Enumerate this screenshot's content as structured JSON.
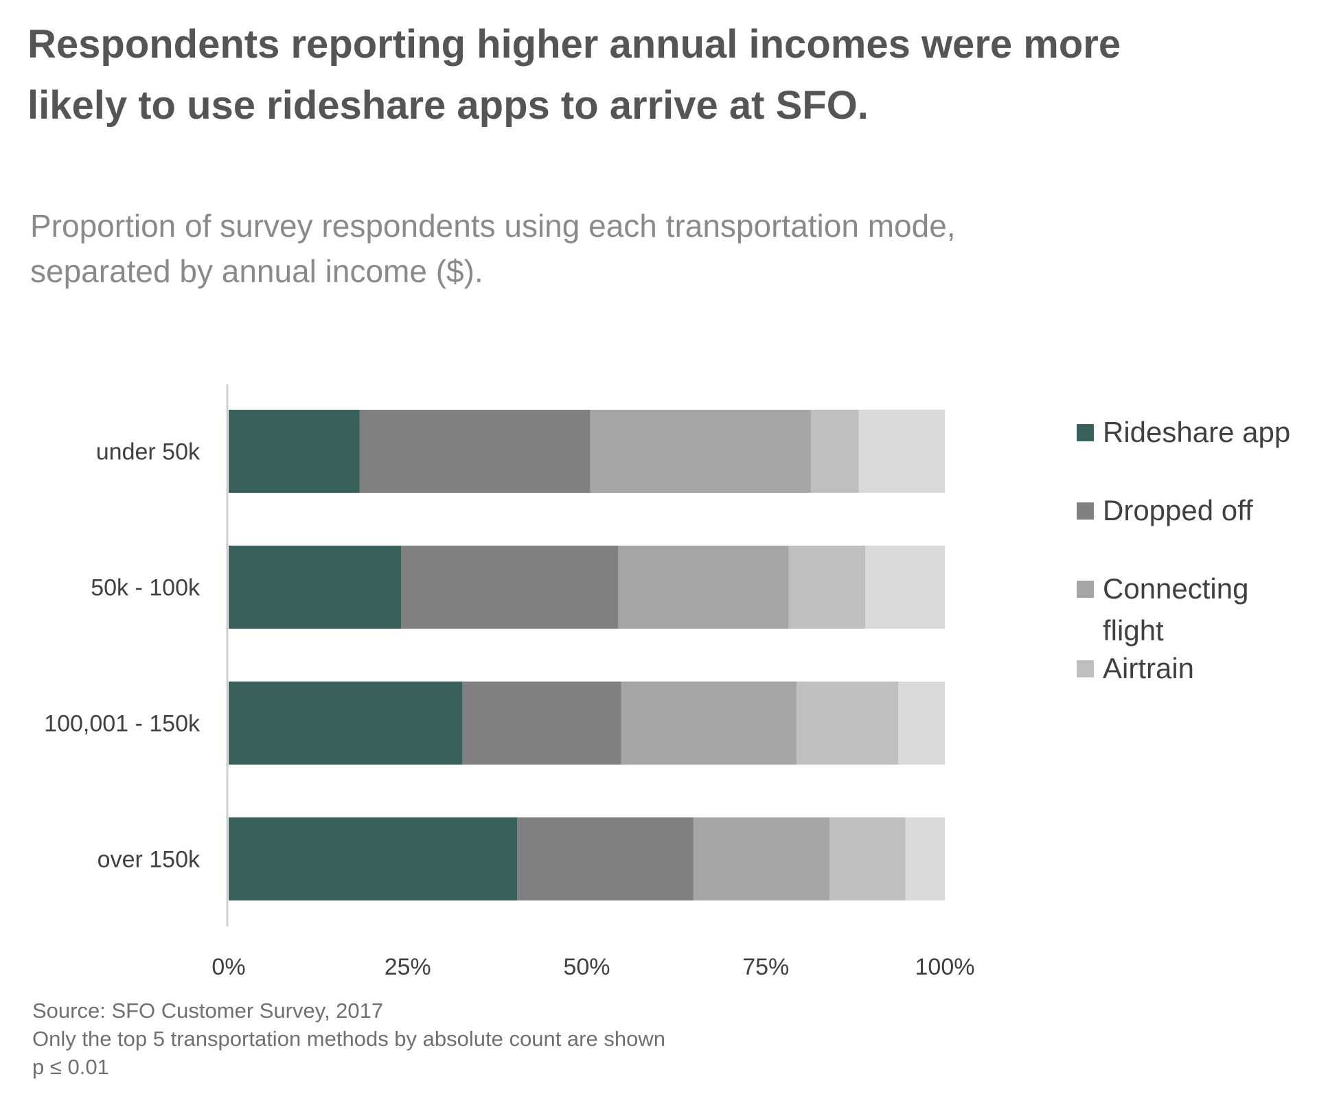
{
  "title": "Respondents reporting higher annual incomes were more likely to use rideshare apps to arrive at SFO.",
  "subtitle": "Proportion of survey respondents using each transportation mode, separated by annual income ($).",
  "notes": {
    "source": "Source: SFO Customer Survey, 2017",
    "line2": "Only the top 5 transportation methods by absolute count are shown",
    "line3": "p ≤ 0.01"
  },
  "chart_data": {
    "type": "bar",
    "orientation": "horizontal",
    "stacked": true,
    "normalized": true,
    "categories": [
      "under 50k",
      "50k - 100k",
      "100,001 - 150k",
      "over 150k"
    ],
    "series": [
      {
        "name": "Rideshare app",
        "color": "#38615c",
        "values": [
          18.3,
          24.1,
          32.6,
          40.3
        ]
      },
      {
        "name": "Dropped off",
        "color": "#808080",
        "values": [
          32.2,
          30.3,
          22.2,
          24.6
        ]
      },
      {
        "name": "Connecting flight",
        "color": "#a5a5a5",
        "values": [
          30.8,
          23.8,
          24.5,
          19.0
        ]
      },
      {
        "name": "Airtrain",
        "color": "#bfbfbf",
        "values": [
          6.7,
          10.7,
          14.2,
          10.6
        ]
      },
      {
        "name": "",
        "color": "#d9d9d9",
        "values": [
          12.0,
          11.1,
          6.5,
          5.5
        ]
      }
    ],
    "xticks": [
      "0%",
      "25%",
      "50%",
      "75%",
      "100%"
    ],
    "xlim": [
      0,
      100
    ],
    "legend_position": "right",
    "grid": false
  }
}
